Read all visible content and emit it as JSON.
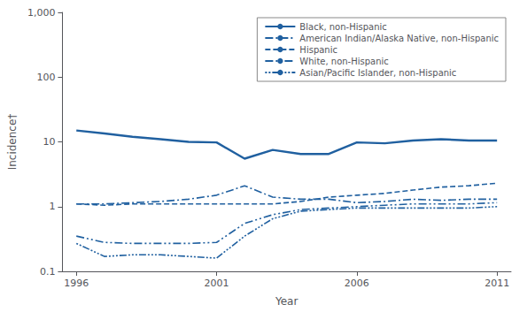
{
  "chart_data": {
    "type": "line",
    "xlabel": "Year",
    "ylabel": "Incidence†",
    "x": [
      1996,
      1997,
      1998,
      1999,
      2000,
      2001,
      2002,
      2003,
      2004,
      2005,
      2006,
      2007,
      2008,
      2009,
      2010,
      2011
    ],
    "series": [
      {
        "name": "Black, non-Hispanic",
        "line_style": "solid",
        "values": [
          15.0,
          13.5,
          12.0,
          11.0,
          10.0,
          9.8,
          5.5,
          7.5,
          6.5,
          6.5,
          9.8,
          9.5,
          10.5,
          11.0,
          10.5,
          10.5
        ]
      },
      {
        "name": "American Indian/Alaska Native, non-Hispanic",
        "line_style": "dashdot",
        "values": [
          1.1,
          1.1,
          1.15,
          1.2,
          1.3,
          1.5,
          2.1,
          1.4,
          1.3,
          1.3,
          1.15,
          1.2,
          1.3,
          1.25,
          1.3,
          1.3
        ]
      },
      {
        "name": "Hispanic",
        "line_style": "dashed",
        "values": [
          1.1,
          1.05,
          1.1,
          1.1,
          1.1,
          1.1,
          1.1,
          1.1,
          1.2,
          1.4,
          1.5,
          1.6,
          1.8,
          2.0,
          2.1,
          2.3
        ]
      },
      {
        "name": "White, non-Hispanic",
        "line_style": "dashdotdot",
        "values": [
          0.35,
          0.28,
          0.27,
          0.27,
          0.27,
          0.28,
          0.55,
          0.75,
          0.9,
          0.95,
          1.0,
          1.05,
          1.1,
          1.1,
          1.1,
          1.15
        ]
      },
      {
        "name": "Asian/Pacific Islander, non-Hispanic",
        "line_style": "dotted",
        "values": [
          0.27,
          0.17,
          0.18,
          0.18,
          0.17,
          0.16,
          0.35,
          0.65,
          0.85,
          0.9,
          0.95,
          0.95,
          0.95,
          0.95,
          0.95,
          1.0
        ]
      }
    ],
    "color": "#2060A0",
    "log": "y",
    "xlim": [
      1995.5,
      2011.5
    ],
    "xticks": [
      1996,
      2001,
      2006,
      2011
    ],
    "ylim": [
      0.1,
      1000
    ],
    "yticks": [
      0.1,
      1,
      10,
      100,
      {
        "value": 1000,
        "label": "1,000"
      }
    ],
    "grid": false,
    "legend": "upper right"
  }
}
